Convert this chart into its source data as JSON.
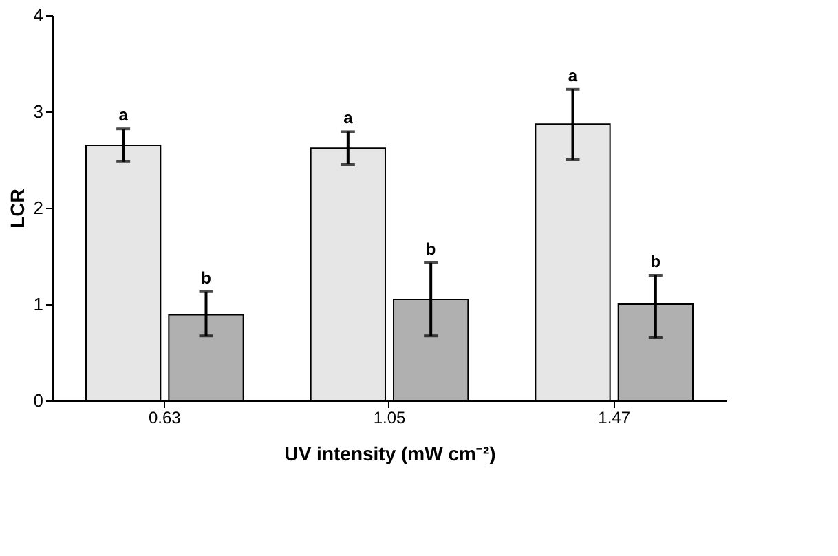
{
  "chart_data": {
    "type": "bar",
    "xlabel": "UV intensity (mW cm⁻²)",
    "ylabel": "LCR",
    "categories": [
      "0.63",
      "1.05",
      "1.47"
    ],
    "series": [
      {
        "color": "#e6e6e6",
        "values": [
          2.65,
          2.62,
          2.87
        ],
        "errors": [
          [
            2.48,
            2.82
          ],
          [
            2.45,
            2.79
          ],
          [
            2.5,
            3.23
          ]
        ]
      },
      {
        "color": "#b0b0b0",
        "values": [
          0.89,
          1.05,
          1.0
        ],
        "errors": [
          [
            0.67,
            1.13
          ],
          [
            0.67,
            1.43
          ],
          [
            0.65,
            1.3
          ]
        ]
      }
    ],
    "ylim": [
      0,
      4
    ],
    "yticks": [
      0,
      1,
      2,
      3,
      4
    ],
    "grid": false,
    "annotations": [
      "a",
      "b",
      "a",
      "b",
      "a",
      "b"
    ]
  }
}
